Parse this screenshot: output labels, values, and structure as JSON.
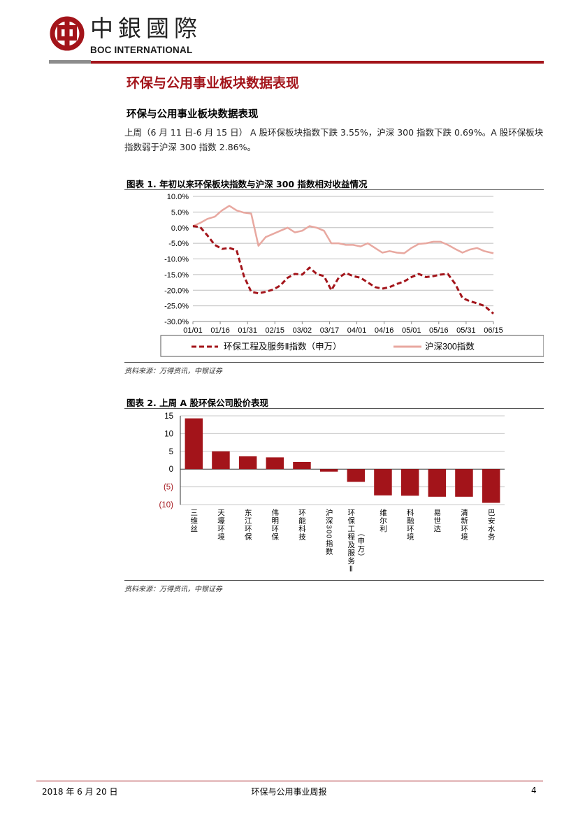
{
  "header": {
    "logo_cn": "中銀國際",
    "logo_en": "BOC INTERNATIONAL",
    "brand_color": "#a3141a"
  },
  "section_title": "环保与公用事业板块数据表现",
  "sub_title": "环保与公用事业板块数据表现",
  "body_text": "上周（6 月 11 日-6 月 15 日） A 股环保板块指数下跌 3.55%，沪深 300 指数下跌 0.69%。A 股环保板块指数弱于沪深 300 指数 2.86%。",
  "figure1": {
    "title": "图表 1. 年初以来环保板块指数与沪深 300 指数相对收益情况",
    "source": "资料来源：万得资讯，中银证券"
  },
  "figure2": {
    "title": "图表 2. 上周 A 股环保公司股价表现",
    "source": "资料来源：万得资讯，中银证券"
  },
  "footer": {
    "date": "2018 年 6 月 20 日",
    "title": "环保与公用事业周报",
    "page": "4"
  },
  "chart_data": [
    {
      "type": "line",
      "xlabel": "",
      "ylabel": "",
      "ylim": [
        -30,
        10
      ],
      "y_ticks": [
        "10.0%",
        "5.0%",
        "0.0%",
        "-5.0%",
        "-10.0%",
        "-15.0%",
        "-20.0%",
        "-25.0%",
        "-30.0%"
      ],
      "x_ticks": [
        "01/01",
        "01/16",
        "01/31",
        "02/15",
        "03/02",
        "03/17",
        "04/01",
        "04/16",
        "05/01",
        "05/16",
        "05/31",
        "06/15"
      ],
      "grid": true,
      "legend_position": "bottom",
      "x": [
        0,
        4,
        8,
        12,
        16,
        20,
        24,
        28,
        32,
        36,
        40,
        44,
        48,
        52,
        56,
        60,
        64,
        68,
        72,
        76,
        80,
        84,
        88,
        92,
        96,
        100,
        104,
        108,
        112,
        116,
        120,
        124,
        128,
        132,
        136,
        140,
        144,
        148,
        152,
        156,
        160,
        165
      ],
      "series": [
        {
          "name": "环保工程及服务Ⅱ指数（申万）",
          "color": "#a3141a",
          "style": "dashed",
          "values": [
            0.5,
            0.2,
            -2.5,
            -5.5,
            -6.8,
            -6.5,
            -7.2,
            -15.5,
            -20.5,
            -21.0,
            -20.5,
            -19.8,
            -18.5,
            -16.0,
            -14.8,
            -15.0,
            -12.8,
            -14.8,
            -15.5,
            -20.0,
            -16.0,
            -14.5,
            -15.5,
            -16.0,
            -17.5,
            -19.0,
            -19.5,
            -19.0,
            -18.0,
            -17.2,
            -15.8,
            -14.8,
            -15.8,
            -15.5,
            -15.0,
            -14.8,
            -18.0,
            -22.5,
            -23.5,
            -24.2,
            -25.0,
            -27.5
          ]
        },
        {
          "name": "沪深300指数",
          "color": "#e8a8a0",
          "style": "solid",
          "values": [
            0.5,
            1.5,
            2.8,
            3.5,
            5.5,
            7.0,
            5.5,
            4.8,
            4.5,
            -5.8,
            -3.0,
            -2.0,
            -1.0,
            0.0,
            -1.5,
            -1.0,
            0.5,
            0.0,
            -1.0,
            -5.0,
            -5.0,
            -5.5,
            -5.5,
            -6.0,
            -5.0,
            -6.5,
            -8.0,
            -7.5,
            -8.0,
            -8.2,
            -6.5,
            -5.2,
            -5.0,
            -4.5,
            -4.5,
            -5.5,
            -6.8,
            -8.0,
            -7.0,
            -6.5,
            -7.5,
            -8.2
          ]
        }
      ]
    },
    {
      "type": "bar",
      "categories": [
        "三维丝",
        "天壕环境",
        "东江环保",
        "伟明环保",
        "环能科技",
        "沪深300指数",
        "环保工程及服务Ⅱ（申万）",
        "维尔利",
        "科融环境",
        "易世达",
        "清新环境",
        "巴安水务"
      ],
      "values": [
        14.3,
        5.0,
        3.6,
        3.3,
        2.0,
        -0.7,
        -3.6,
        -7.4,
        -7.5,
        -7.8,
        -7.8,
        -9.5
      ],
      "ylim": [
        -10,
        15
      ],
      "y_ticks": [
        "15",
        "10",
        "5",
        "0",
        "(5)",
        "(10)"
      ],
      "negative_tick_color": "#a3141a",
      "bar_color": "#a3141a",
      "grid": true
    }
  ]
}
